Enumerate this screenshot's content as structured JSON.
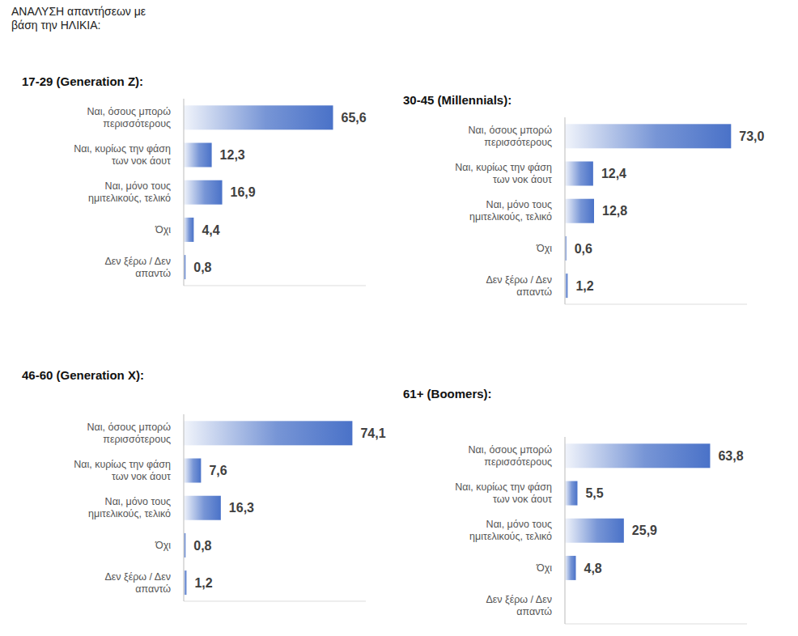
{
  "title": "ΑΝΑΛΥΣΗ απαντήσεων με βάση την ΗΛΙΚΙΑ:",
  "chart_data": [
    {
      "type": "bar",
      "title": "17-29 (Generation Z):",
      "orientation": "horizontal",
      "categories": [
        "Ναι, όσους μπορώ περισσότερους",
        "Ναι, κυρίως την φάση των νοκ άουτ",
        "Ναι, μόνο τους ημιτελικούς, τελικό",
        "Όχι",
        "Δεν ξέρω / Δεν απαντώ"
      ],
      "values": [
        65.6,
        12.3,
        16.9,
        4.4,
        0.8
      ],
      "value_labels": [
        "65,6",
        "12,3",
        "16,9",
        "4,4",
        "0,8"
      ],
      "color": "#4a72c8",
      "xlim": [
        0,
        80
      ],
      "data_labels": true,
      "tick_labels": "y"
    },
    {
      "type": "bar",
      "title": "30-45 (Millennials):",
      "orientation": "horizontal",
      "categories": [
        "Ναι, όσους μπορώ περισσότερους",
        "Ναι, κυρίως την φάση των νοκ άουτ",
        "Ναι, μόνο τους ημιτελικούς, τελικό",
        "Όχι",
        "Δεν ξέρω / Δεν απαντώ"
      ],
      "values": [
        73.0,
        12.4,
        12.8,
        0.6,
        1.2
      ],
      "value_labels": [
        "73,0",
        "12,4",
        "12,8",
        "0,6",
        "1,2"
      ],
      "color": "#4a72c8",
      "xlim": [
        0,
        80
      ],
      "data_labels": true,
      "tick_labels": "y"
    },
    {
      "type": "bar",
      "title": "46-60 (Generation X):",
      "orientation": "horizontal",
      "categories": [
        "Ναι, όσους μπορώ περισσότερους",
        "Ναι, κυρίως την φάση των νοκ άουτ",
        "Ναι, μόνο τους ημιτελικούς, τελικό",
        "Όχι",
        "Δεν ξέρω / Δεν απαντώ"
      ],
      "values": [
        74.1,
        7.6,
        16.3,
        0.8,
        1.2
      ],
      "value_labels": [
        "74,1",
        "7,6",
        "16,3",
        "0,8",
        "1,2"
      ],
      "color": "#4a72c8",
      "xlim": [
        0,
        80
      ],
      "data_labels": true,
      "tick_labels": "y"
    },
    {
      "type": "bar",
      "title": "61+ (Boomers):",
      "orientation": "horizontal",
      "categories": [
        "Ναι, όσους μπορώ περισσότερους",
        "Ναι, κυρίως την φάση των νοκ άουτ",
        "Ναι, μόνο τους ημιτελικούς, τελικό",
        "Όχι",
        "Δεν ξέρω / Δεν απαντώ"
      ],
      "values": [
        63.8,
        5.5,
        25.9,
        4.8,
        null
      ],
      "value_labels": [
        "63,8",
        "5,5",
        "25,9",
        "4,8",
        null
      ],
      "color": "#4a72c8",
      "xlim": [
        0,
        80
      ],
      "data_labels": true,
      "tick_labels": "y"
    }
  ]
}
